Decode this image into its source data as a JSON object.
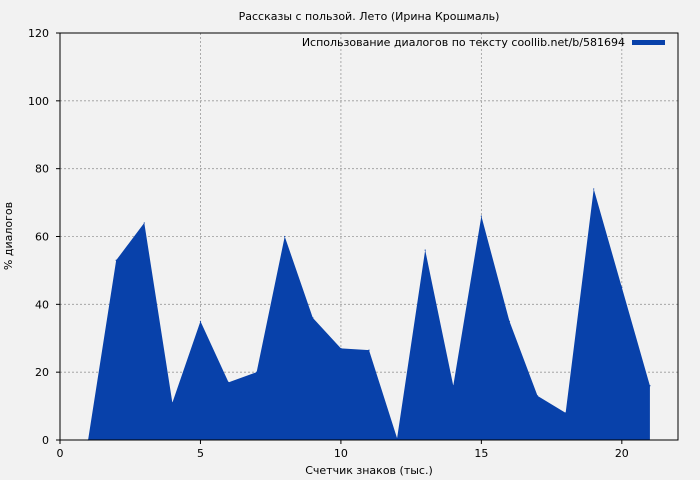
{
  "chart_data": {
    "type": "area",
    "title": "Рассказы с пользой. Лето (Ирина Крошмаль)",
    "xlabel": "Счетчик знаков (тыс.)",
    "ylabel": "% диалогов",
    "xlim": [
      0,
      22
    ],
    "ylim": [
      0,
      120
    ],
    "xticks": [
      0,
      5,
      10,
      15,
      20
    ],
    "yticks": [
      0,
      20,
      40,
      60,
      80,
      100,
      120
    ],
    "grid": true,
    "legend_position": "top-right",
    "series": [
      {
        "name": "Использование диалогов по тексту coollib.net/b/581694",
        "color": "#0841aa",
        "x": [
          1,
          2,
          3,
          4,
          5,
          6,
          7,
          8,
          9,
          10,
          11,
          12,
          13,
          14,
          15,
          16,
          17,
          18,
          19,
          20,
          21
        ],
        "values": [
          0,
          53,
          64,
          11,
          35,
          17,
          20,
          60,
          36,
          27,
          26.5,
          0.5,
          56,
          16,
          66,
          35,
          13,
          8,
          74,
          45,
          16
        ]
      }
    ]
  }
}
